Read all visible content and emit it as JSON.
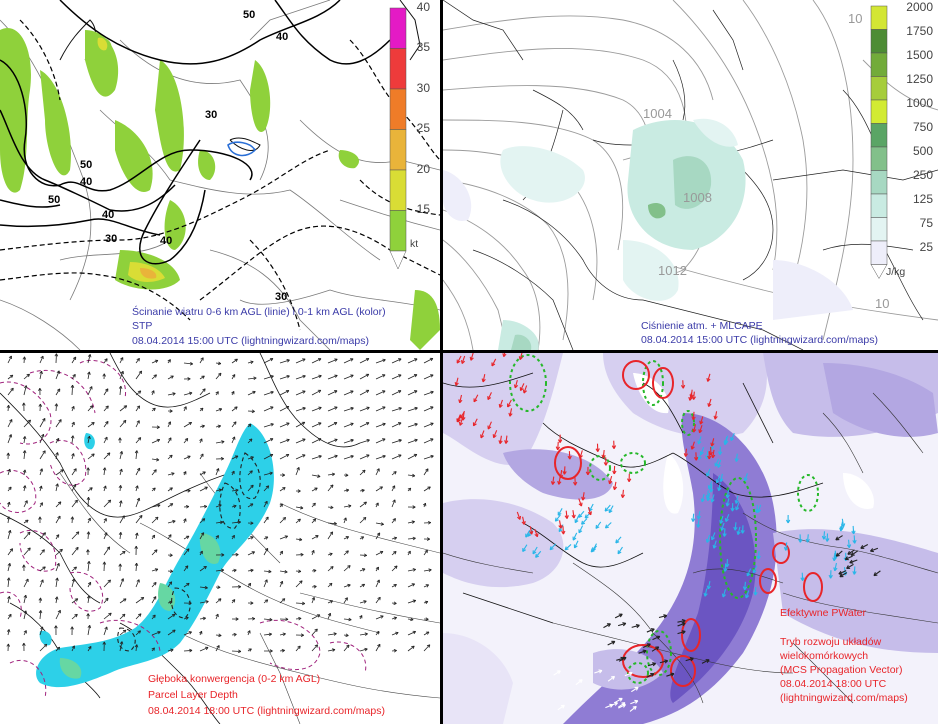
{
  "panels": {
    "top_left": {
      "caption_line1": "Ścinanie wiatru 0-6 km AGL (linie) i 0-1 km AGL (kolor)",
      "caption_line2": "STP",
      "caption_line3": "08.04.2014 15:00 UTC (lightningwizard.com/maps)",
      "contour_labels": [
        "50",
        "40",
        "40",
        "30",
        "30",
        "50",
        "40",
        "50",
        "40",
        "30"
      ],
      "colorbar": {
        "unit": "kt",
        "ticks": [
          "40",
          "35",
          "30",
          "25",
          "20",
          "15"
        ],
        "colors": [
          "#e41ac5",
          "#ee3b3b",
          "#ef7c28",
          "#e9b43a",
          "#d9dd35",
          "#8fd13b"
        ]
      }
    },
    "top_right": {
      "caption_line1": "Ciśnienie atm. + MLCAPE",
      "caption_line2": "08.04.2014 15:00 UTC (lightningwizard.com/maps)",
      "isobar_labels": [
        "1004",
        "1008",
        "1012",
        "10",
        "10"
      ],
      "colorbar": {
        "unit": "J/kg",
        "ticks": [
          "2000",
          "1750",
          "1500",
          "1250",
          "1000",
          "750",
          "500",
          "250",
          "125",
          "75",
          "25"
        ],
        "colors": [
          "#d3e634",
          "#4d8c35",
          "#72ab3a",
          "#a6cd3b",
          "#d2eb33",
          "#5aa565",
          "#82c08a",
          "#a7d8c2",
          "#c9ebe2",
          "#e3f4f2",
          "#eeeefa"
        ]
      }
    },
    "bottom_left": {
      "caption_line1": "Głęboka konwergencja (0-2 km AGL)",
      "caption_line2": "Parcel Layer Depth",
      "caption_line3": "08.04.2014 18:00 UTC (lightningwizard.com/maps)"
    },
    "bottom_right": {
      "label_pw": "Efektywne PWater",
      "caption_line1": "Tryb rozwoju układów",
      "caption_line2": "wielokomórkowych",
      "caption_line3": "(MCS Propagation Vector)",
      "caption_line4": "08.04.2014 18:00 UTC",
      "caption_line5": "(lightningwizard.com/maps)"
    }
  }
}
